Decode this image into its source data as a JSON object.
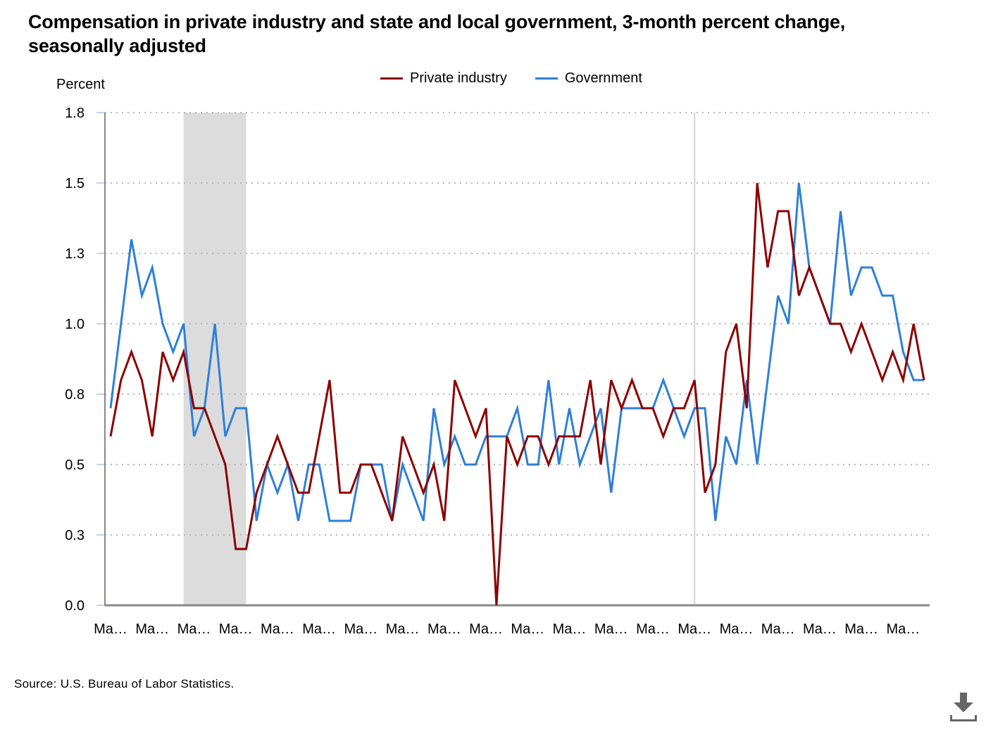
{
  "chart_data": {
    "type": "line",
    "title": "Compensation in private industry and state and local government, 3-month percent change, seasonally adjusted",
    "ylabel": "Percent",
    "xlabel": "",
    "ylim": [
      0,
      1.75
    ],
    "yticks": [
      0,
      0.25,
      0.5,
      0.75,
      1.0,
      1.25,
      1.5,
      1.75
    ],
    "ytick_labels": [
      "0.0",
      "0.3",
      "0.5",
      "0.8",
      "1.0",
      "1.3",
      "1.5",
      "1.8"
    ],
    "xtick_labels": [
      "Ma…",
      "Ma…",
      "Ma…",
      "Ma…",
      "Ma…",
      "Ma…",
      "Ma…",
      "Ma…",
      "Ma…",
      "Ma…",
      "Ma…",
      "Ma…",
      "Ma…",
      "Ma…",
      "Ma…",
      "Ma…",
      "Ma…",
      "Ma…",
      "Ma…",
      "Ma…"
    ],
    "xtick_every": 4,
    "grid": "horizontal dotted",
    "legend_position": "top-center",
    "shaded_range": [
      7,
      13
    ],
    "reference_line_index": 56,
    "series": [
      {
        "name": "Private industry",
        "color": "#8b0000",
        "values": [
          0.6,
          0.8,
          0.9,
          0.8,
          0.6,
          0.9,
          0.8,
          0.9,
          0.7,
          0.7,
          0.6,
          0.5,
          0.2,
          0.2,
          0.4,
          0.5,
          0.6,
          0.5,
          0.4,
          0.4,
          0.6,
          0.8,
          0.4,
          0.4,
          0.5,
          0.5,
          0.4,
          0.3,
          0.6,
          0.5,
          0.4,
          0.5,
          0.3,
          0.8,
          0.7,
          0.6,
          0.7,
          0.0,
          0.6,
          0.5,
          0.6,
          0.6,
          0.5,
          0.6,
          0.6,
          0.6,
          0.8,
          0.5,
          0.8,
          0.7,
          0.8,
          0.7,
          0.7,
          0.6,
          0.7,
          0.7,
          0.8,
          0.4,
          0.5,
          0.9,
          1.0,
          0.7,
          1.5,
          1.2,
          1.4,
          1.4,
          1.1,
          1.2,
          1.1,
          1.0,
          1.0,
          0.9,
          1.0,
          0.9,
          0.8,
          0.9,
          0.8,
          1.0,
          0.8
        ]
      },
      {
        "name": "Government",
        "color": "#2e7fd9",
        "values": [
          0.7,
          1.0,
          1.3,
          1.1,
          1.2,
          1.0,
          0.9,
          1.0,
          0.6,
          0.7,
          1.0,
          0.6,
          0.7,
          0.7,
          0.3,
          0.5,
          0.4,
          0.5,
          0.3,
          0.5,
          0.5,
          0.3,
          0.3,
          0.3,
          0.5,
          0.5,
          0.5,
          0.3,
          0.5,
          0.4,
          0.3,
          0.7,
          0.5,
          0.6,
          0.5,
          0.5,
          0.6,
          0.6,
          0.6,
          0.7,
          0.5,
          0.5,
          0.8,
          0.5,
          0.7,
          0.5,
          0.6,
          0.7,
          0.4,
          0.7,
          0.7,
          0.7,
          0.7,
          0.8,
          0.7,
          0.6,
          0.7,
          0.7,
          0.3,
          0.6,
          0.5,
          0.8,
          0.5,
          0.8,
          1.1,
          1.0,
          1.5,
          1.2,
          1.1,
          1.0,
          1.4,
          1.1,
          1.2,
          1.2,
          1.1,
          1.1,
          0.9,
          0.8,
          0.8
        ]
      }
    ]
  },
  "source": "Source: U.S. Bureau of Labor Statistics.",
  "download_icon": "download-icon"
}
